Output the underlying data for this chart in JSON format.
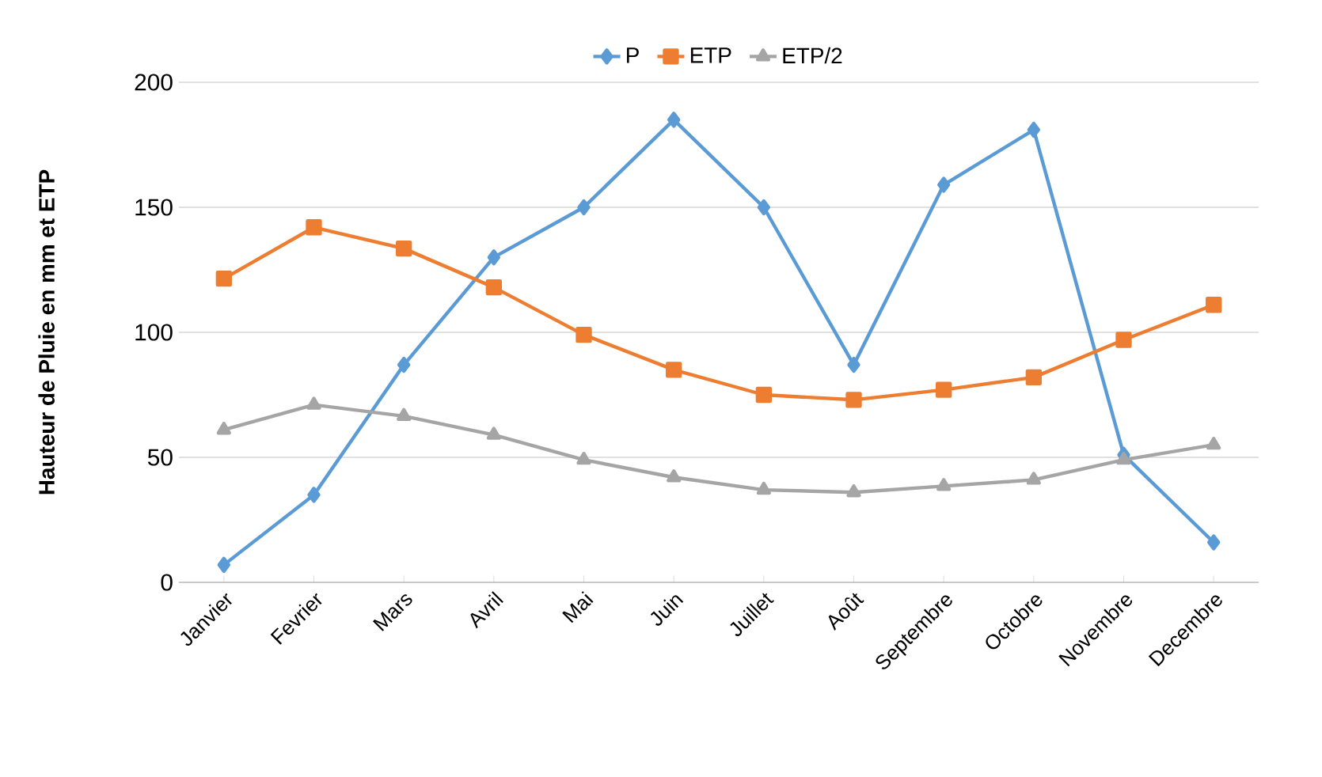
{
  "chart_data": {
    "type": "line",
    "ylabel": "Hauteur de Pluie en mm et ETP",
    "categories": [
      "Janvier",
      "Fevrier",
      "Mars",
      "Avril",
      "Mai",
      "Juin",
      "Juillet",
      "Août",
      "Septembre",
      "Octobre",
      "Novembre",
      "Decembre"
    ],
    "series": [
      {
        "name": "P",
        "color": "#5b9bd5",
        "marker": "diamond",
        "values": [
          7,
          35,
          87,
          130,
          150,
          185,
          150,
          87,
          159,
          181,
          51,
          16
        ]
      },
      {
        "name": "ETP",
        "color": "#ed7d31",
        "marker": "square",
        "values": [
          121.5,
          142,
          133.5,
          118,
          99,
          85,
          75,
          73,
          77,
          82,
          97,
          111
        ]
      },
      {
        "name": "ETP/2",
        "color": "#a5a5a5",
        "marker": "triangle",
        "values": [
          61,
          71,
          66.5,
          59,
          49,
          42,
          37,
          36,
          38.5,
          41,
          49,
          55
        ]
      }
    ],
    "ylim": [
      0,
      200
    ],
    "yticks": [
      0,
      50,
      100,
      150,
      200
    ],
    "grid": "y",
    "legend": "top",
    "line_style": "solid"
  }
}
